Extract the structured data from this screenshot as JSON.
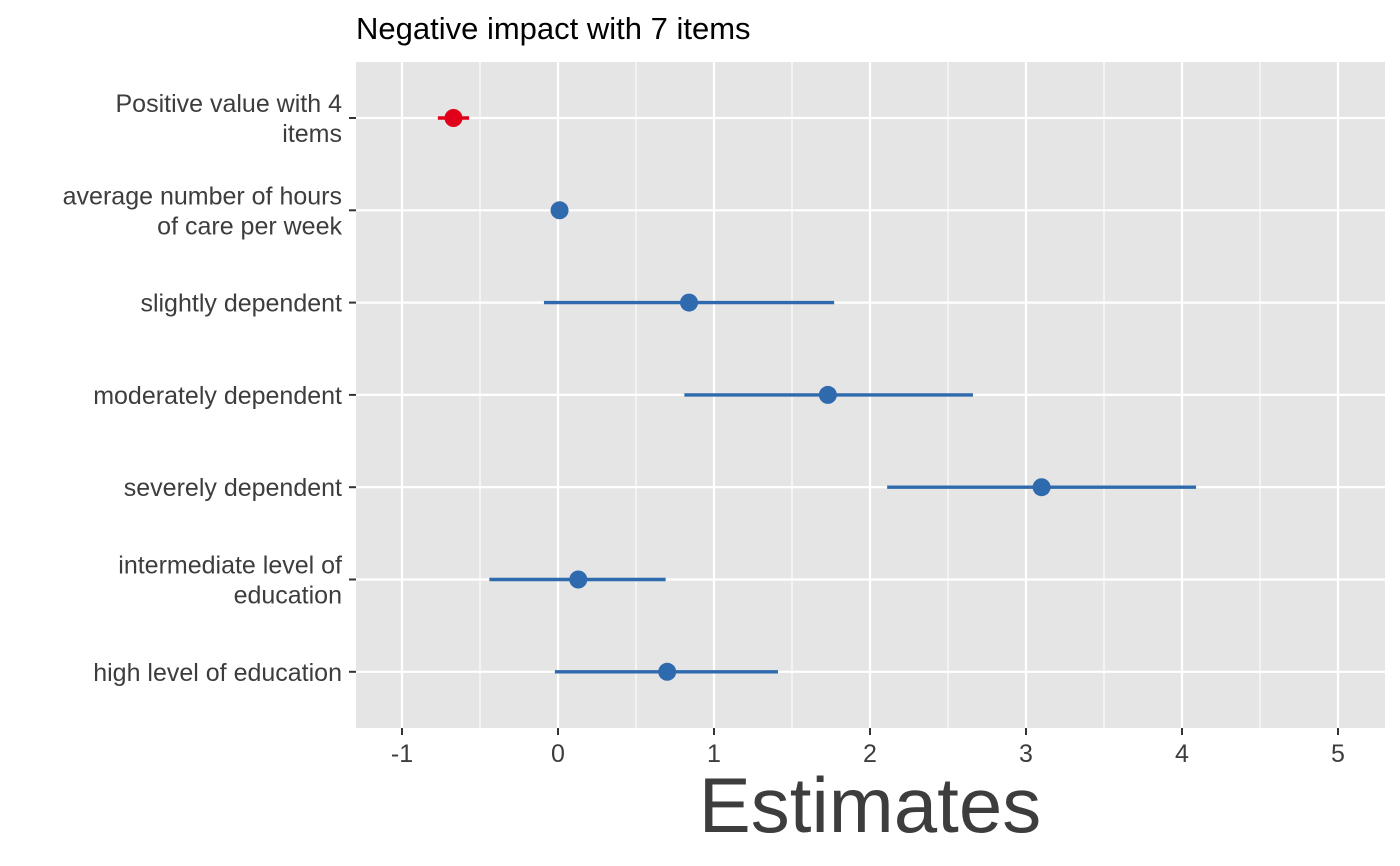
{
  "chart_data": {
    "type": "scatter",
    "title": "Negative impact with 7 items",
    "xlabel": "Estimates",
    "ylabel": "",
    "xlim": [
      -1.3,
      5.3
    ],
    "xticks": [
      "-1",
      "0",
      "1",
      "2",
      "3",
      "4",
      "5"
    ],
    "grid": true,
    "legend": "none",
    "colors": {
      "positive": "#2e6aad",
      "negative": "#e1001a",
      "panel": "#e5e5e5",
      "grid": "#ffffff"
    },
    "points": [
      {
        "label": "Positive value with 4\nitems",
        "estimate": -0.67,
        "low": -0.77,
        "high": -0.57,
        "sign": "negative"
      },
      {
        "label": "average number of hours\nof care per week",
        "estimate": 0.01,
        "low": -0.01,
        "high": 0.03,
        "sign": "positive"
      },
      {
        "label": "slightly dependent",
        "estimate": 0.84,
        "low": -0.09,
        "high": 1.77,
        "sign": "positive"
      },
      {
        "label": "moderately dependent",
        "estimate": 1.73,
        "low": 0.81,
        "high": 2.66,
        "sign": "positive"
      },
      {
        "label": "severely dependent",
        "estimate": 3.1,
        "low": 2.11,
        "high": 4.09,
        "sign": "positive"
      },
      {
        "label": "intermediate level of\neducation",
        "estimate": 0.13,
        "low": -0.44,
        "high": 0.69,
        "sign": "positive"
      },
      {
        "label": "high level of education",
        "estimate": 0.7,
        "low": -0.02,
        "high": 1.41,
        "sign": "positive"
      }
    ]
  }
}
